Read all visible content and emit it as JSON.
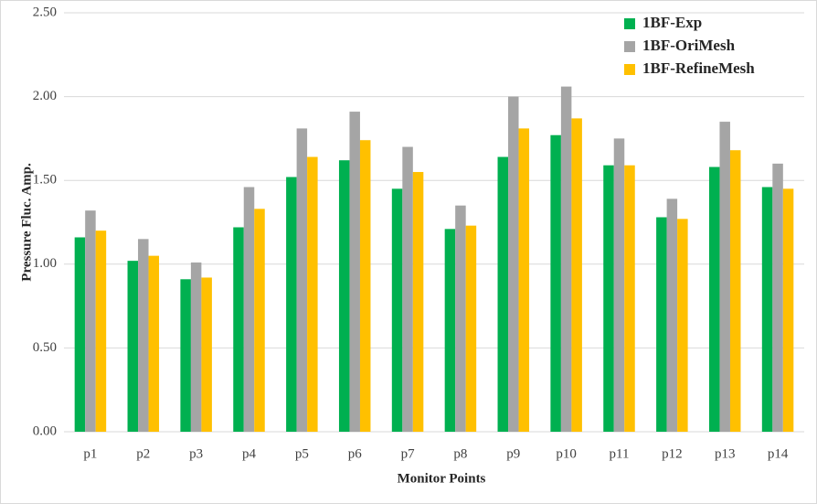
{
  "chart_data": {
    "type": "bar",
    "x_label": "Monitor Points",
    "y_label": "Pressure Fluc. Amp.",
    "categories": [
      "p1",
      "p2",
      "p3",
      "p4",
      "p5",
      "p6",
      "p7",
      "p8",
      "p9",
      "p10",
      "p11",
      "p12",
      "p13",
      "p14"
    ],
    "series": [
      {
        "name": "1BF-Exp",
        "color": "#00b050",
        "values": [
          1.16,
          1.02,
          0.91,
          1.22,
          1.52,
          1.62,
          1.45,
          1.21,
          1.64,
          1.77,
          1.59,
          1.28,
          1.58,
          1.46
        ]
      },
      {
        "name": "1BF-OriMesh",
        "color": "#a5a5a5",
        "values": [
          1.32,
          1.15,
          1.01,
          1.46,
          1.81,
          1.91,
          1.7,
          1.35,
          2.0,
          2.06,
          1.75,
          1.39,
          1.85,
          1.6
        ]
      },
      {
        "name": "1BF-RefineMesh",
        "color": "#ffc000",
        "values": [
          1.2,
          1.05,
          0.92,
          1.33,
          1.64,
          1.74,
          1.55,
          1.23,
          1.81,
          1.87,
          1.59,
          1.27,
          1.68,
          1.45
        ]
      }
    ],
    "ylim": [
      0,
      2.5
    ],
    "yticks": [
      {
        "value": 0,
        "label": "0.00"
      },
      {
        "value": 0.5,
        "label": "0.50"
      },
      {
        "value": 1,
        "label": "1.00"
      },
      {
        "value": 1.5,
        "label": "1.50"
      },
      {
        "value": 2,
        "label": "2.00"
      },
      {
        "value": 2.5,
        "label": "2.50"
      }
    ],
    "grid": true,
    "legend": "top-right"
  }
}
